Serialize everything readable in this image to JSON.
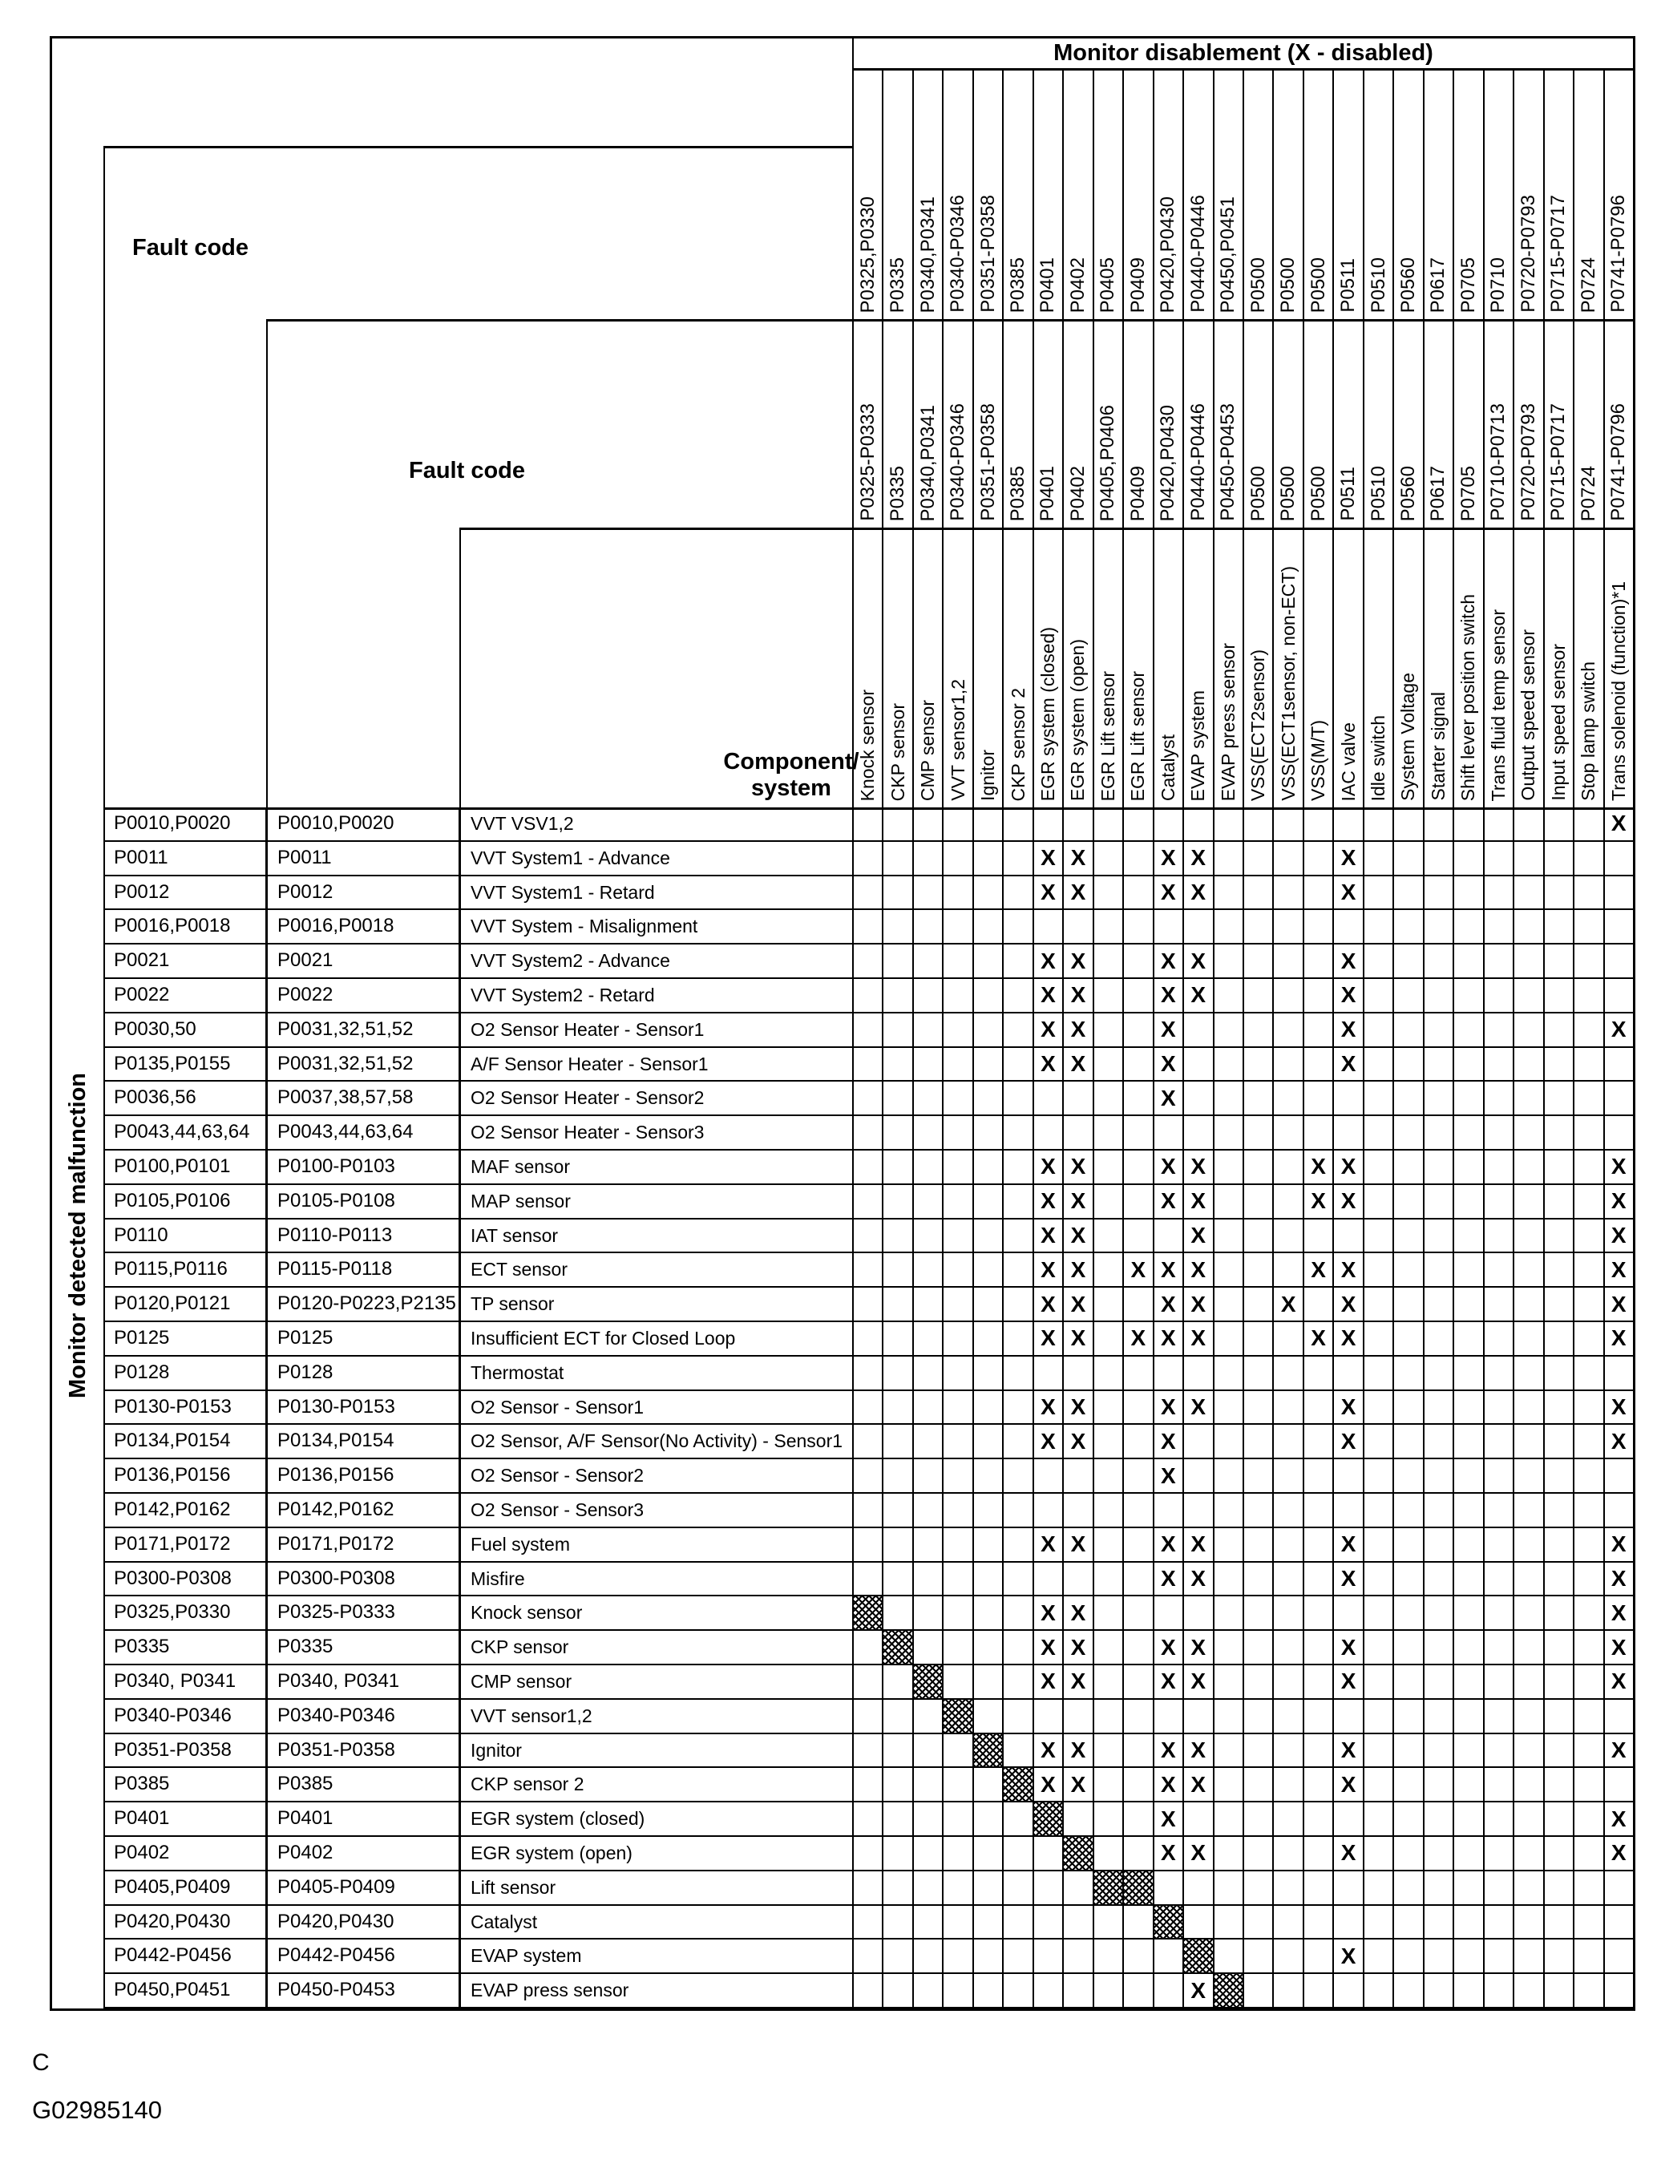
{
  "title": "Monitor disablement (X - disabled)",
  "header": {
    "fault_code_label_1": "Fault code",
    "fault_code_label_2": "Fault code",
    "component_label_line1": "Component/",
    "component_label_line2": "system",
    "side_label": "Monitor detected malfunction"
  },
  "marks": {
    "x": "X"
  },
  "colors": {
    "ink": "#000000",
    "paper": "#ffffff"
  },
  "columns": [
    {
      "code_row1": "P0325,P0330",
      "code_row2": "P0325-P0333",
      "component": "Knock sensor"
    },
    {
      "code_row1": "P0335",
      "code_row2": "P0335",
      "component": "CKP sensor"
    },
    {
      "code_row1": "P0340,P0341",
      "code_row2": "P0340,P0341",
      "component": "CMP sensor"
    },
    {
      "code_row1": "P0340-P0346",
      "code_row2": "P0340-P0346",
      "component": "VVT sensor1,2"
    },
    {
      "code_row1": "P0351-P0358",
      "code_row2": "P0351-P0358",
      "component": "Ignitor"
    },
    {
      "code_row1": "P0385",
      "code_row2": "P0385",
      "component": "CKP sensor 2"
    },
    {
      "code_row1": "P0401",
      "code_row2": "P0401",
      "component": "EGR system (closed)"
    },
    {
      "code_row1": "P0402",
      "code_row2": "P0402",
      "component": "EGR system (open)"
    },
    {
      "code_row1": "P0405",
      "code_row2": "P0405,P0406",
      "component": "EGR Lift sensor"
    },
    {
      "code_row1": "P0409",
      "code_row2": "P0409",
      "component": "EGR Lift sensor"
    },
    {
      "code_row1": "P0420,P0430",
      "code_row2": "P0420,P0430",
      "component": "Catalyst"
    },
    {
      "code_row1": "P0440-P0446",
      "code_row2": "P0440-P0446",
      "component": "EVAP system"
    },
    {
      "code_row1": "P0450,P0451",
      "code_row2": "P0450-P0453",
      "component": "EVAP press sensor"
    },
    {
      "code_row1": "P0500",
      "code_row2": "P0500",
      "component": "VSS(ECT2sensor)"
    },
    {
      "code_row1": "P0500",
      "code_row2": "P0500",
      "component": "VSS(ECT1sensor, non-ECT)"
    },
    {
      "code_row1": "P0500",
      "code_row2": "P0500",
      "component": "VSS(M/T)"
    },
    {
      "code_row1": "P0511",
      "code_row2": "P0511",
      "component": "IAC valve"
    },
    {
      "code_row1": "P0510",
      "code_row2": "P0510",
      "component": "Idle switch"
    },
    {
      "code_row1": "P0560",
      "code_row2": "P0560",
      "component": "System Voltage"
    },
    {
      "code_row1": "P0617",
      "code_row2": "P0617",
      "component": "Starter signal"
    },
    {
      "code_row1": "P0705",
      "code_row2": "P0705",
      "component": "Shift lever position switch"
    },
    {
      "code_row1": "P0710",
      "code_row2": "P0710-P0713",
      "component": "Trans fluid temp sensor"
    },
    {
      "code_row1": "P0720-P0793",
      "code_row2": "P0720-P0793",
      "component": "Output speed sensor"
    },
    {
      "code_row1": "P0715-P0717",
      "code_row2": "P0715-P0717",
      "component": "Input speed sensor"
    },
    {
      "code_row1": "P0724",
      "code_row2": "P0724",
      "component": "Stop lamp switch"
    },
    {
      "code_row1": "P0741-P0796",
      "code_row2": "P0741-P0796",
      "component": "Trans solenoid (function)*1"
    }
  ],
  "rows": [
    {
      "fault_code_1": "P0010,P0020",
      "fault_code_2": "P0010,P0020",
      "component": "VVT VSV1,2",
      "disabled_cols": [
        26
      ],
      "self_cols": []
    },
    {
      "fault_code_1": "P0011",
      "fault_code_2": "P0011",
      "component": "VVT System1 - Advance",
      "disabled_cols": [
        7,
        8,
        11,
        12,
        17
      ],
      "self_cols": []
    },
    {
      "fault_code_1": "P0012",
      "fault_code_2": "P0012",
      "component": "VVT System1 - Retard",
      "disabled_cols": [
        7,
        8,
        11,
        12,
        17
      ],
      "self_cols": []
    },
    {
      "fault_code_1": "P0016,P0018",
      "fault_code_2": "P0016,P0018",
      "component": "VVT System - Misalignment",
      "disabled_cols": [],
      "self_cols": []
    },
    {
      "fault_code_1": "P0021",
      "fault_code_2": "P0021",
      "component": "VVT System2 - Advance",
      "disabled_cols": [
        7,
        8,
        11,
        12,
        17
      ],
      "self_cols": []
    },
    {
      "fault_code_1": "P0022",
      "fault_code_2": "P0022",
      "component": "VVT System2 - Retard",
      "disabled_cols": [
        7,
        8,
        11,
        12,
        17
      ],
      "self_cols": []
    },
    {
      "fault_code_1": "P0030,50",
      "fault_code_2": "P0031,32,51,52",
      "component": "O2 Sensor Heater - Sensor1",
      "disabled_cols": [
        7,
        8,
        11,
        17,
        26
      ],
      "self_cols": []
    },
    {
      "fault_code_1": "P0135,P0155",
      "fault_code_2": "P0031,32,51,52",
      "component": "A/F Sensor Heater  - Sensor1",
      "disabled_cols": [
        7,
        8,
        11,
        17
      ],
      "self_cols": []
    },
    {
      "fault_code_1": "P0036,56",
      "fault_code_2": "P0037,38,57,58",
      "component": "O2 Sensor Heater - Sensor2",
      "disabled_cols": [
        11
      ],
      "self_cols": []
    },
    {
      "fault_code_1": "P0043,44,63,64",
      "fault_code_2": "P0043,44,63,64",
      "component": "O2 Sensor Heater - Sensor3",
      "disabled_cols": [],
      "self_cols": []
    },
    {
      "fault_code_1": "P0100,P0101",
      "fault_code_2": "P0100-P0103",
      "component": "MAF sensor",
      "disabled_cols": [
        7,
        8,
        11,
        12,
        16,
        17,
        26
      ],
      "self_cols": []
    },
    {
      "fault_code_1": "P0105,P0106",
      "fault_code_2": "P0105-P0108",
      "component": "MAP sensor",
      "disabled_cols": [
        7,
        8,
        11,
        12,
        16,
        17,
        26
      ],
      "self_cols": []
    },
    {
      "fault_code_1": "P0110",
      "fault_code_2": "P0110-P0113",
      "component": "IAT sensor",
      "disabled_cols": [
        7,
        8,
        12,
        26
      ],
      "self_cols": []
    },
    {
      "fault_code_1": "P0115,P0116",
      "fault_code_2": "P0115-P0118",
      "component": "ECT sensor",
      "disabled_cols": [
        7,
        8,
        10,
        11,
        12,
        16,
        17,
        26
      ],
      "self_cols": []
    },
    {
      "fault_code_1": "P0120,P0121",
      "fault_code_2": "P0120-P0223,P2135",
      "component": "TP sensor",
      "disabled_cols": [
        7,
        8,
        11,
        12,
        15,
        17,
        26
      ],
      "self_cols": []
    },
    {
      "fault_code_1": "P0125",
      "fault_code_2": "P0125",
      "component": "Insufficient ECT for Closed Loop",
      "disabled_cols": [
        7,
        8,
        10,
        11,
        12,
        16,
        17,
        26
      ],
      "self_cols": []
    },
    {
      "fault_code_1": "P0128",
      "fault_code_2": "P0128",
      "component": "Thermostat",
      "disabled_cols": [],
      "self_cols": []
    },
    {
      "fault_code_1": "P0130-P0153",
      "fault_code_2": "P0130-P0153",
      "component": "O2 Sensor - Sensor1",
      "disabled_cols": [
        7,
        8,
        11,
        12,
        17,
        26
      ],
      "self_cols": []
    },
    {
      "fault_code_1": "P0134,P0154",
      "fault_code_2": "P0134,P0154",
      "component": "O2 Sensor, A/F Sensor(No Activity) - Sensor1",
      "disabled_cols": [
        7,
        8,
        11,
        17,
        26
      ],
      "self_cols": []
    },
    {
      "fault_code_1": "P0136,P0156",
      "fault_code_2": "P0136,P0156",
      "component": "O2 Sensor - Sensor2",
      "disabled_cols": [
        11
      ],
      "self_cols": []
    },
    {
      "fault_code_1": "P0142,P0162",
      "fault_code_2": "P0142,P0162",
      "component": "O2 Sensor - Sensor3",
      "disabled_cols": [],
      "self_cols": []
    },
    {
      "fault_code_1": "P0171,P0172",
      "fault_code_2": "P0171,P0172",
      "component": "Fuel system",
      "disabled_cols": [
        7,
        8,
        11,
        12,
        17,
        26
      ],
      "self_cols": []
    },
    {
      "fault_code_1": "P0300-P0308",
      "fault_code_2": "P0300-P0308",
      "component": "Misfire",
      "disabled_cols": [
        11,
        12,
        17,
        26
      ],
      "self_cols": []
    },
    {
      "fault_code_1": "P0325,P0330",
      "fault_code_2": "P0325-P0333",
      "component": "Knock sensor",
      "disabled_cols": [
        7,
        8,
        26
      ],
      "self_cols": [
        1
      ]
    },
    {
      "fault_code_1": "P0335",
      "fault_code_2": "P0335",
      "component": "CKP sensor",
      "disabled_cols": [
        7,
        8,
        11,
        12,
        17,
        26
      ],
      "self_cols": [
        2
      ]
    },
    {
      "fault_code_1": "P0340, P0341",
      "fault_code_2": "P0340, P0341",
      "component": "CMP sensor",
      "disabled_cols": [
        7,
        8,
        11,
        12,
        17,
        26
      ],
      "self_cols": [
        3
      ]
    },
    {
      "fault_code_1": "P0340-P0346",
      "fault_code_2": "P0340-P0346",
      "component": "VVT sensor1,2",
      "disabled_cols": [],
      "self_cols": [
        4
      ]
    },
    {
      "fault_code_1": "P0351-P0358",
      "fault_code_2": "P0351-P0358",
      "component": "Ignitor",
      "disabled_cols": [
        7,
        8,
        11,
        12,
        17,
        26
      ],
      "self_cols": [
        5
      ]
    },
    {
      "fault_code_1": "P0385",
      "fault_code_2": "P0385",
      "component": "CKP sensor 2",
      "disabled_cols": [
        7,
        8,
        11,
        12,
        17
      ],
      "self_cols": [
        6
      ]
    },
    {
      "fault_code_1": "P0401",
      "fault_code_2": "P0401",
      "component": "EGR system (closed)",
      "disabled_cols": [
        11,
        26
      ],
      "self_cols": [
        7
      ]
    },
    {
      "fault_code_1": "P0402",
      "fault_code_2": "P0402",
      "component": "EGR system (open)",
      "disabled_cols": [
        11,
        12,
        17,
        26
      ],
      "self_cols": [
        8
      ]
    },
    {
      "fault_code_1": "P0405,P0409",
      "fault_code_2": "P0405-P0409",
      "component": "Lift sensor",
      "disabled_cols": [],
      "self_cols": [
        9,
        10
      ]
    },
    {
      "fault_code_1": "P0420,P0430",
      "fault_code_2": "P0420,P0430",
      "component": "Catalyst",
      "disabled_cols": [],
      "self_cols": [
        11
      ]
    },
    {
      "fault_code_1": "P0442-P0456",
      "fault_code_2": "P0442-P0456",
      "component": "EVAP system",
      "disabled_cols": [
        17
      ],
      "self_cols": [
        12
      ]
    },
    {
      "fault_code_1": "P0450,P0451",
      "fault_code_2": "P0450-P0453",
      "component": "EVAP press sensor",
      "disabled_cols": [
        12
      ],
      "self_cols": [
        13
      ]
    }
  ],
  "footer": {
    "mark": "C",
    "figure_id": "G02985140"
  }
}
